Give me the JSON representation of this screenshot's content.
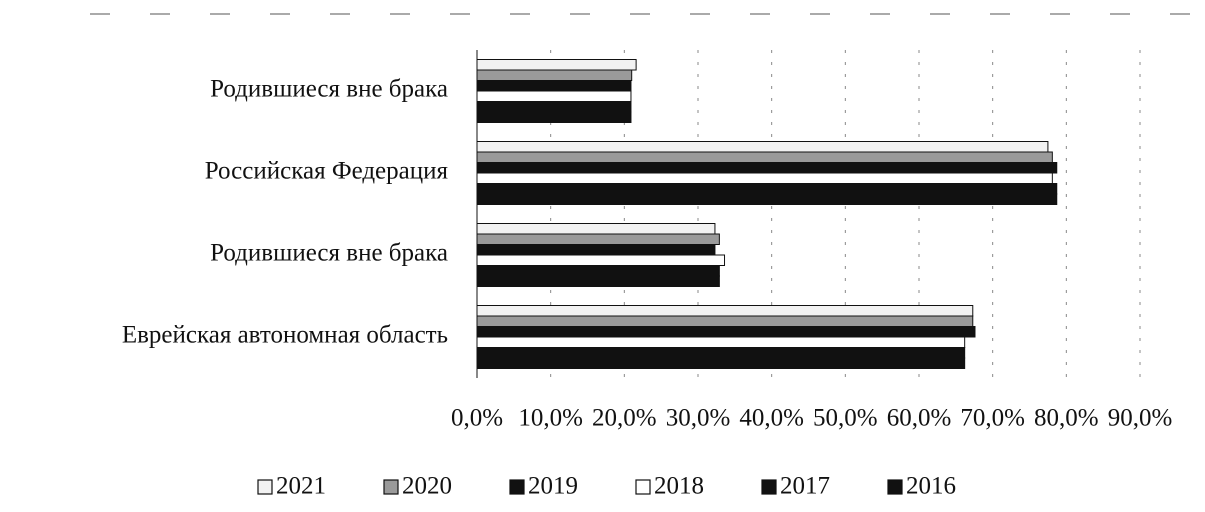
{
  "chart_data": {
    "type": "hbar",
    "categories": [
      "Родившиеся вне брака",
      "Российская Федерация",
      "Родившиеся вне брака",
      "Еврейская автономная область"
    ],
    "series": [
      {
        "name": "2021",
        "color": "#f2f2f2",
        "values": [
          21.6,
          77.5,
          32.3,
          67.3
        ]
      },
      {
        "name": "2020",
        "color": "#9a9a9a",
        "values": [
          21.0,
          78.1,
          32.9,
          67.3
        ]
      },
      {
        "name": "2019",
        "color": "#111111",
        "values": [
          20.9,
          78.7,
          32.3,
          67.6
        ]
      },
      {
        "name": "2018",
        "color": "#ffffff",
        "values": [
          20.9,
          78.1,
          33.6,
          66.2
        ]
      },
      {
        "name": "2017",
        "color": "#111111",
        "values": [
          20.9,
          78.7,
          32.9,
          66.2
        ]
      },
      {
        "name": "2016",
        "color": "#111111",
        "values": [
          20.9,
          78.7,
          32.9,
          66.2
        ]
      }
    ],
    "xlim": [
      0,
      90
    ],
    "xticks": [
      {
        "value": 0,
        "label": "0,0%"
      },
      {
        "value": 10,
        "label": "10,0%"
      },
      {
        "value": 20,
        "label": "20,0%"
      },
      {
        "value": 30,
        "label": "30,0%"
      },
      {
        "value": 40,
        "label": "40,0%"
      },
      {
        "value": 50,
        "label": "50,0%"
      },
      {
        "value": 60,
        "label": "60,0%"
      },
      {
        "value": 70,
        "label": "70,0%"
      },
      {
        "value": 80,
        "label": "80,0%"
      },
      {
        "value": 90,
        "label": "90,0%"
      }
    ],
    "grid": true,
    "legend": "bottom"
  }
}
